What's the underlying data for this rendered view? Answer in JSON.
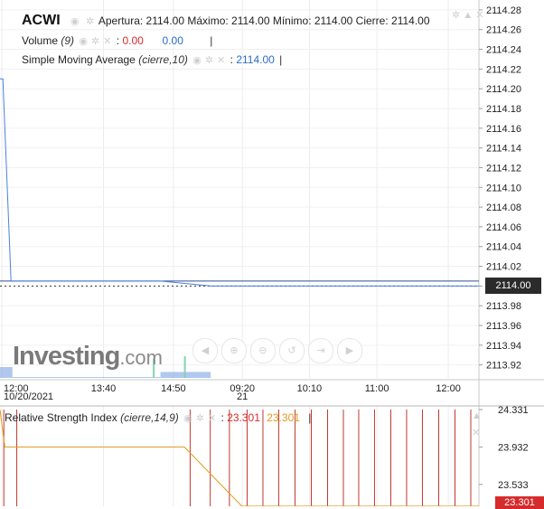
{
  "legend": {
    "symbol": "ACWI",
    "ohlc": "Apertura: 2114.00 Máximo: 2114.00 Mínimo: 2114.00 Cierre: 2114.00",
    "volume_label": "Volume",
    "volume_param": "(9)",
    "volume_value_1": "0.00",
    "volume_value_2": "0.00",
    "sma_label": "Simple Moving Average",
    "sma_param": "(cierre,10)",
    "sma_value": "2114.00",
    "rsi_label": "Relative Strength Index",
    "rsi_param": "(cierre,14,9)",
    "rsi_value_1": "23.301",
    "rsi_value_2": "23.301",
    "cursor_bar": "|"
  },
  "icons": {
    "eye": "eye-icon",
    "settings": "gear-icon",
    "close": "close-icon",
    "collapse": "chevron-up-icon"
  },
  "watermark": {
    "main": "Investing",
    "suffix": ".com"
  },
  "toolbar": [
    "zoom-left-icon",
    "zoom-in-icon",
    "zoom-out-icon",
    "zoom-reset-icon",
    "scroll-end-icon",
    "zoom-right-icon"
  ],
  "price_tag": "2114.00",
  "rsi_tag": "23.301",
  "colors": {
    "price_line": "#4a7fe0",
    "sma_line": "#2b4f8c",
    "rsi_line": "#e09a1c",
    "rsi_bars": "#c0392b",
    "volume": "#8fb0e6",
    "volume_up": "#7fd0a8",
    "tag_dark": "#2b2b2b",
    "tag_red": "#d62b2b"
  },
  "chart_data": {
    "type": "line",
    "x_labels": [
      "12:00",
      "13:40",
      "14:50",
      "09:20",
      "10:10",
      "11:00",
      "12:00"
    ],
    "date_labels": [
      "10/20/2021",
      "21"
    ],
    "y_ticks": [
      "2114.28",
      "2114.26",
      "2114.24",
      "2114.22",
      "2114.20",
      "2114.18",
      "2114.16",
      "2114.14",
      "2114.12",
      "2114.10",
      "2114.08",
      "2114.06",
      "2114.04",
      "2114.02",
      "2114.00",
      "2113.98",
      "2113.96",
      "2113.94",
      "2113.92"
    ],
    "ylim": [
      2113.905,
      2114.29
    ],
    "price_series": [
      {
        "t": 0.0,
        "v": 2114.21
      },
      {
        "t": 0.6,
        "v": 2114.21
      },
      {
        "t": 2.3,
        "v": 2114.005
      },
      {
        "t": 33.5,
        "v": 2114.005
      },
      {
        "t": 44.2,
        "v": 2114.0
      },
      {
        "t": 100,
        "v": 2114.0
      }
    ],
    "sma_series": [
      {
        "t": 0.0,
        "v": 2114.005
      },
      {
        "t": 2.3,
        "v": 2114.005
      },
      {
        "t": 100,
        "v": 2114.005
      }
    ],
    "last_price": 2114.0,
    "rsi": {
      "y_ticks": [
        "24.331",
        "23.932",
        "23.533"
      ],
      "ylim": [
        23.3,
        24.36
      ],
      "line": [
        {
          "t": 0.0,
          "v": 24.331
        },
        {
          "t": 1.0,
          "v": 23.932
        },
        {
          "t": 38.5,
          "v": 23.932
        },
        {
          "t": 50.5,
          "v": 23.301
        },
        {
          "t": 100,
          "v": 23.301
        }
      ],
      "bar_positions": [
        0.8,
        3.5,
        39.7,
        43.9,
        47.9,
        51.6,
        54.9,
        58.2,
        61.6,
        65.0,
        68.4,
        71.7,
        74.9,
        78.2,
        81.6,
        84.9,
        88.2,
        91.6,
        95.0,
        98.3
      ],
      "bar_top": 24.331,
      "bar_bottom": 23.3,
      "last_value": 23.301
    },
    "volume": {
      "bars": [
        {
          "t": 0.0,
          "w": 2.6,
          "v": 1.0,
          "kind": "area"
        },
        {
          "t": 2.6,
          "w": 30.9,
          "v": 0.0,
          "kind": "area"
        },
        {
          "t": 33.5,
          "w": 10.5,
          "v": 0.55,
          "kind": "area"
        },
        {
          "t": 31.9,
          "w": 0.4,
          "v": 1.8,
          "kind": "up"
        },
        {
          "t": 38.4,
          "w": 0.4,
          "v": 2.0,
          "kind": "up"
        }
      ]
    }
  }
}
